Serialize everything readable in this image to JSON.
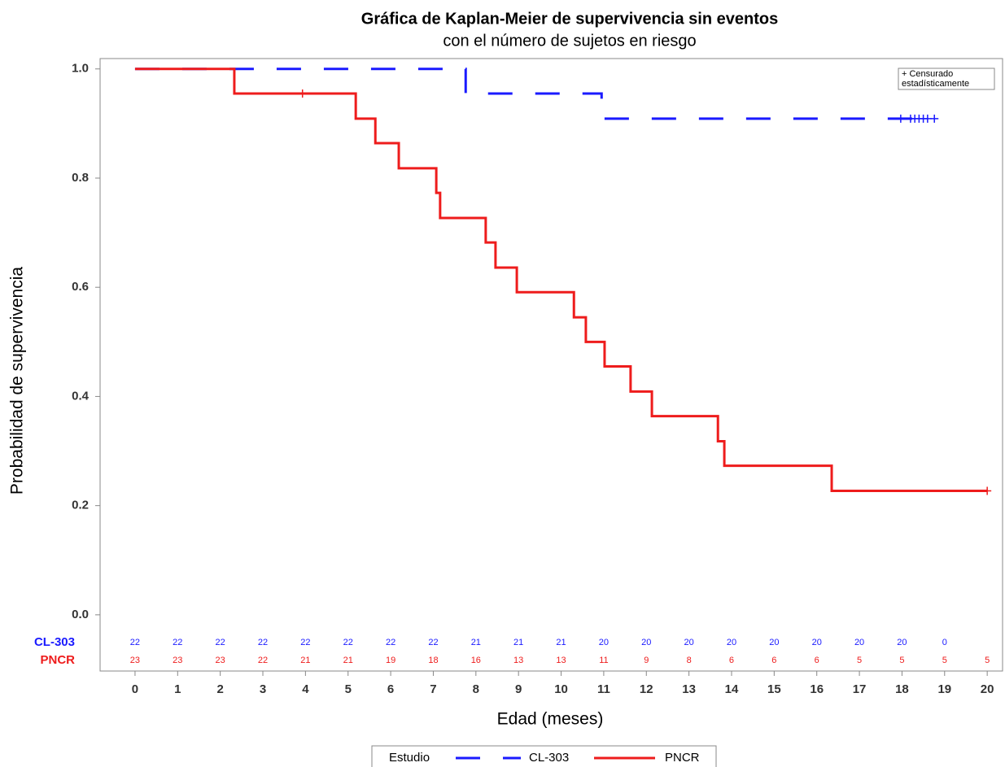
{
  "chart_data": {
    "type": "kaplan-meier",
    "title": "Gráfica de Kaplan-Meier de supervivencia sin eventos",
    "subtitle": "con el número de sujetos en riesgo",
    "xlabel": "Edad (meses)",
    "ylabel": "Probabilidad de supervivencia",
    "xlim": [
      -0.82,
      20.36
    ],
    "ylim": [
      -0.103,
      1.019
    ],
    "xticks": [
      0,
      1,
      2,
      3,
      4,
      5,
      6,
      7,
      8,
      9,
      10,
      11,
      12,
      13,
      14,
      15,
      16,
      17,
      18,
      19,
      20
    ],
    "yticks": [
      {
        "value": 0,
        "label": "0.0"
      },
      0.2,
      0.4,
      0.6,
      0.8,
      {
        "value": 1,
        "label": "1.0"
      }
    ],
    "legend_title": "Estudio",
    "censor_note": [
      "+ Censurado",
      "estadísticamente"
    ],
    "at_risk_times": [
      0,
      1,
      2,
      3,
      4,
      5,
      6,
      7,
      8,
      9,
      10,
      11,
      12,
      13,
      14,
      15,
      16,
      17,
      18,
      19,
      20
    ],
    "series": [
      {
        "name": "CL-303",
        "color": "#1a1aff",
        "dash": true,
        "x": [
          0,
          7.76,
          10.95,
          18.76
        ],
        "values": [
          1,
          0.955,
          0.909,
          0.909
        ],
        "censored": {
          "x": [
            17.97,
            18.2,
            18.3,
            18.4,
            18.5,
            18.6,
            18.76
          ],
          "values": [
            0.909,
            0.909,
            0.909,
            0.909,
            0.909,
            0.909,
            0.909
          ]
        },
        "at_risk": [
          22,
          22,
          22,
          22,
          22,
          22,
          22,
          22,
          21,
          21,
          21,
          20,
          20,
          20,
          20,
          20,
          20,
          20,
          20,
          0,
          null
        ]
      },
      {
        "name": "PNCR",
        "color": "#ee1c1c",
        "dash": false,
        "x": [
          0,
          2.33,
          5.18,
          5.64,
          6.19,
          7.07,
          7.16,
          8.23,
          8.46,
          8.96,
          10.3,
          10.58,
          11.02,
          11.63,
          12.13,
          13.68,
          13.83,
          16.35,
          20
        ],
        "values": [
          1,
          0.955,
          0.909,
          0.864,
          0.818,
          0.773,
          0.727,
          0.682,
          0.636,
          0.591,
          0.545,
          0.5,
          0.455,
          0.409,
          0.364,
          0.318,
          0.273,
          0.227,
          0.227
        ],
        "censored": {
          "x": [
            3.93,
            20
          ],
          "values": [
            0.955,
            0.227
          ]
        },
        "at_risk": [
          23,
          23,
          23,
          22,
          21,
          21,
          19,
          18,
          16,
          13,
          13,
          11,
          9,
          8,
          6,
          6,
          6,
          5,
          5,
          5,
          5
        ]
      }
    ]
  }
}
